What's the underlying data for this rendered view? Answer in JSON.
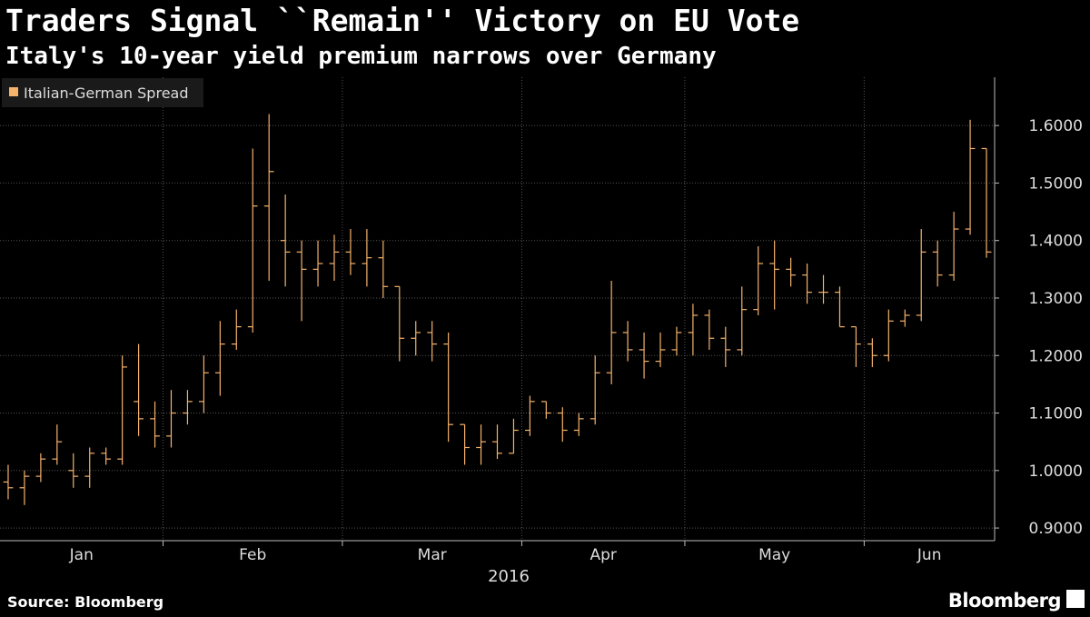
{
  "chart_data": {
    "type": "ohlc",
    "title": "Traders Signal ``Remain'' Victory on EU Vote",
    "subtitle": "Italy's 10-year yield premium narrows over Germany",
    "x_label": "2016",
    "source": "Source: Bloomberg",
    "brand": "Bloomberg",
    "grid": true,
    "legend": "top-left",
    "categories": [
      "Jan",
      "Jan",
      "Jan",
      "Jan",
      "Jan",
      "Jan",
      "Jan",
      "Jan",
      "Jan",
      "Jan",
      "Feb",
      "Feb",
      "Feb",
      "Feb",
      "Feb",
      "Feb",
      "Feb",
      "Feb",
      "Feb",
      "Feb",
      "Feb",
      "Mar",
      "Mar",
      "Mar",
      "Mar",
      "Mar",
      "Mar",
      "Mar",
      "Mar",
      "Mar",
      "Mar",
      "Mar",
      "Apr",
      "Apr",
      "Apr",
      "Apr",
      "Apr",
      "Apr",
      "Apr",
      "Apr",
      "Apr",
      "Apr",
      "May",
      "May",
      "May",
      "May",
      "May",
      "May",
      "May",
      "May",
      "May",
      "May",
      "May",
      "Jun",
      "Jun",
      "Jun",
      "Jun",
      "Jun",
      "Jun",
      "Jun",
      "Jun"
    ],
    "series": [
      {
        "name": "Italian-German Spread",
        "color": "#f5b26b",
        "open": [
          0.98,
          0.97,
          0.99,
          1.02,
          1.0,
          0.99,
          1.03,
          1.02,
          1.12,
          1.09,
          1.06,
          1.1,
          1.12,
          1.17,
          1.22,
          1.25,
          1.46,
          1.4,
          1.38,
          1.35,
          1.36,
          1.38,
          1.36,
          1.37,
          1.32,
          1.23,
          1.24,
          1.22,
          1.08,
          1.04,
          1.05,
          1.03,
          1.07,
          1.12,
          1.1,
          1.07,
          1.09,
          1.17,
          1.24,
          1.21,
          1.19,
          1.21,
          1.24,
          1.27,
          1.23,
          1.21,
          1.28,
          1.36,
          1.35,
          1.34,
          1.31,
          1.31,
          1.25,
          1.22,
          1.2,
          1.26,
          1.27,
          1.38,
          1.34,
          1.42,
          1.56
        ],
        "high": [
          1.01,
          1.0,
          1.03,
          1.08,
          1.03,
          1.04,
          1.04,
          1.2,
          1.22,
          1.12,
          1.14,
          1.14,
          1.2,
          1.26,
          1.28,
          1.56,
          1.62,
          1.48,
          1.4,
          1.4,
          1.41,
          1.42,
          1.42,
          1.4,
          1.32,
          1.26,
          1.26,
          1.24,
          1.08,
          1.08,
          1.08,
          1.09,
          1.13,
          1.12,
          1.11,
          1.1,
          1.2,
          1.33,
          1.26,
          1.24,
          1.24,
          1.25,
          1.29,
          1.28,
          1.25,
          1.32,
          1.39,
          1.4,
          1.37,
          1.36,
          1.34,
          1.32,
          1.25,
          1.23,
          1.28,
          1.28,
          1.42,
          1.4,
          1.45,
          1.61,
          1.56
        ],
        "low": [
          0.95,
          0.94,
          0.98,
          1.01,
          0.97,
          0.97,
          1.01,
          1.01,
          1.06,
          1.04,
          1.04,
          1.08,
          1.1,
          1.13,
          1.21,
          1.24,
          1.33,
          1.32,
          1.26,
          1.32,
          1.33,
          1.34,
          1.32,
          1.3,
          1.19,
          1.2,
          1.19,
          1.05,
          1.01,
          1.01,
          1.02,
          1.03,
          1.06,
          1.09,
          1.05,
          1.06,
          1.08,
          1.15,
          1.19,
          1.16,
          1.18,
          1.2,
          1.2,
          1.21,
          1.18,
          1.2,
          1.27,
          1.28,
          1.32,
          1.29,
          1.29,
          1.25,
          1.18,
          1.18,
          1.19,
          1.25,
          1.26,
          1.32,
          1.33,
          1.41,
          1.37
        ],
        "close": [
          0.97,
          0.99,
          1.02,
          1.05,
          0.99,
          1.03,
          1.02,
          1.18,
          1.09,
          1.06,
          1.1,
          1.12,
          1.17,
          1.22,
          1.25,
          1.46,
          1.52,
          1.38,
          1.35,
          1.36,
          1.38,
          1.36,
          1.37,
          1.32,
          1.23,
          1.24,
          1.22,
          1.08,
          1.04,
          1.05,
          1.03,
          1.07,
          1.12,
          1.1,
          1.07,
          1.09,
          1.17,
          1.24,
          1.21,
          1.19,
          1.21,
          1.24,
          1.27,
          1.23,
          1.21,
          1.28,
          1.36,
          1.35,
          1.34,
          1.31,
          1.31,
          1.25,
          1.22,
          1.2,
          1.26,
          1.27,
          1.38,
          1.34,
          1.42,
          1.56,
          1.38
        ]
      }
    ],
    "ylim": [
      0.878,
      1.684
    ],
    "yticks": [
      {
        "value": 0.9,
        "label": "0.9000"
      },
      {
        "value": 1.0,
        "label": "1.0000"
      },
      {
        "value": 1.1,
        "label": "1.1000"
      },
      {
        "value": 1.2,
        "label": "1.2000"
      },
      {
        "value": 1.3,
        "label": "1.3000"
      },
      {
        "value": 1.4,
        "label": "1.4000"
      },
      {
        "value": 1.5,
        "label": "1.5000"
      },
      {
        "value": 1.6,
        "label": "1.6000"
      }
    ]
  }
}
